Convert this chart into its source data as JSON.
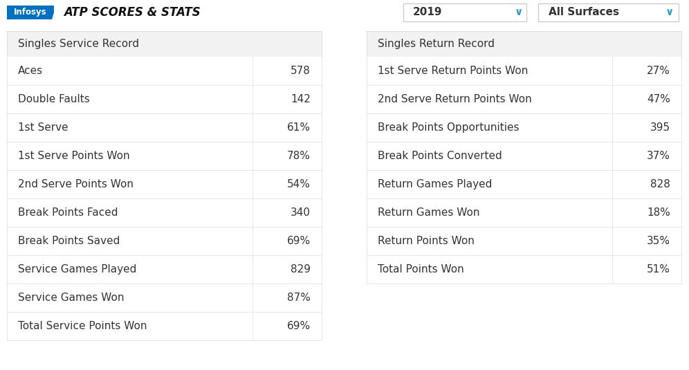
{
  "background_color": "#ffffff",
  "header_bg": "#f2f2f2",
  "border_color": "#dddddd",
  "text_color": "#333333",
  "infosys_bg": "#0070c0",
  "infosys_text": "Infosys",
  "atp_text": "ATP SCORES & STATS",
  "year_label": "2019",
  "surface_label": "All Surfaces",
  "left_table_header": "Singles Service Record",
  "right_table_header": "Singles Return Record",
  "left_rows": [
    [
      "Aces",
      "578"
    ],
    [
      "Double Faults",
      "142"
    ],
    [
      "1st Serve",
      "61%"
    ],
    [
      "1st Serve Points Won",
      "78%"
    ],
    [
      "2nd Serve Points Won",
      "54%"
    ],
    [
      "Break Points Faced",
      "340"
    ],
    [
      "Break Points Saved",
      "69%"
    ],
    [
      "Service Games Played",
      "829"
    ],
    [
      "Service Games Won",
      "87%"
    ],
    [
      "Total Service Points Won",
      "69%"
    ]
  ],
  "right_rows": [
    [
      "1st Serve Return Points Won",
      "27%"
    ],
    [
      "2nd Serve Return Points Won",
      "47%"
    ],
    [
      "Break Points Opportunities",
      "395"
    ],
    [
      "Break Points Converted",
      "37%"
    ],
    [
      "Return Games Played",
      "828"
    ],
    [
      "Return Games Won",
      "18%"
    ],
    [
      "Return Points Won",
      "35%"
    ],
    [
      "Total Points Won",
      "51%"
    ]
  ],
  "dropdown_border": "#cccccc",
  "dropdown_text_color": "#333333",
  "dropdown_arrow_color": "#3399cc",
  "font_size": 11,
  "header_font_size": 11
}
